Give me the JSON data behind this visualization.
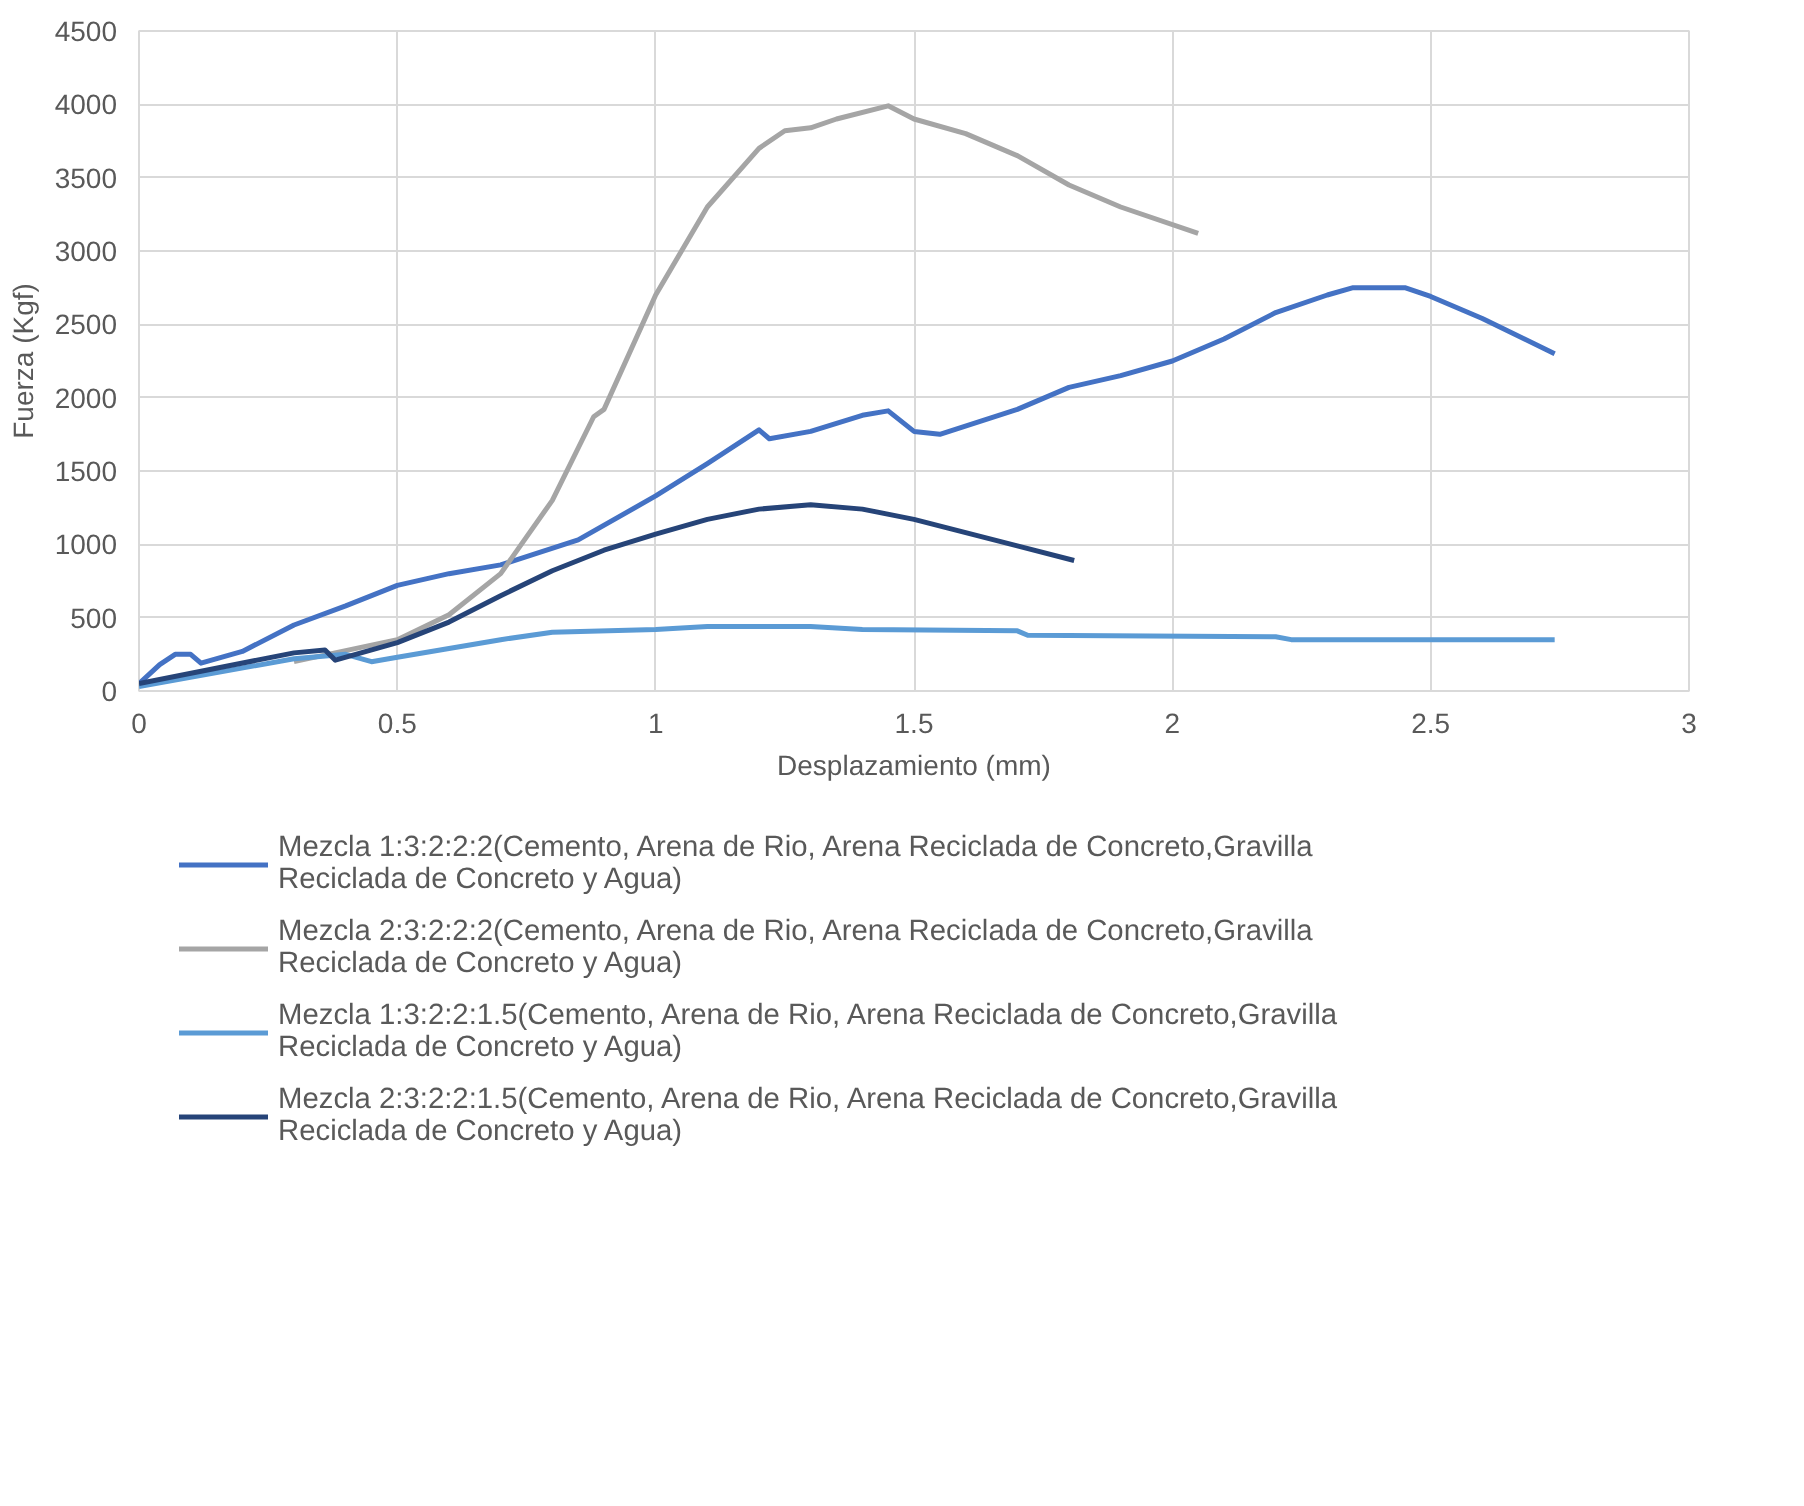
{
  "chart_data": {
    "type": "line",
    "xlabel": "Desplazamiento (mm)",
    "ylabel": "Fuerza (Kgf)",
    "xlim": [
      0,
      3
    ],
    "xticks": [
      0,
      0.5,
      1,
      1.5,
      2,
      2.5,
      3
    ],
    "ylim": [
      0,
      4500
    ],
    "yticks": [
      0,
      500,
      1000,
      1500,
      2000,
      2500,
      3000,
      3500,
      4000,
      4500
    ],
    "grid": true,
    "legend": "bottom",
    "series": [
      {
        "name": "Mezcla 1:3:2:2:2(Cemento, Arena de Rio, Arena Reciclada de Concreto,Gravilla Reciclada de Concreto y Agua)",
        "color": "#4472c4",
        "x": [
          0,
          0.04,
          0.07,
          0.1,
          0.12,
          0.2,
          0.3,
          0.4,
          0.5,
          0.6,
          0.7,
          0.85,
          1.0,
          1.1,
          1.2,
          1.22,
          1.3,
          1.4,
          1.45,
          1.5,
          1.55,
          1.7,
          1.8,
          1.9,
          2.0,
          2.1,
          2.2,
          2.3,
          2.35,
          2.45,
          2.5,
          2.6,
          2.74
        ],
        "values": [
          50,
          180,
          250,
          250,
          190,
          270,
          450,
          580,
          720,
          800,
          860,
          1030,
          1330,
          1550,
          1780,
          1720,
          1770,
          1880,
          1910,
          1770,
          1750,
          1920,
          2070,
          2150,
          2250,
          2400,
          2580,
          2700,
          2750,
          2750,
          2690,
          2540,
          2300
        ]
      },
      {
        "name": "Mezcla 2:3:2:2:2(Cemento, Arena de Rio, Arena Reciclada de Concreto,Gravilla Reciclada de Concreto y Agua)",
        "color": "#a5a5a5",
        "x": [
          0.3,
          0.5,
          0.6,
          0.7,
          0.8,
          0.88,
          0.9,
          1.0,
          1.1,
          1.2,
          1.25,
          1.3,
          1.35,
          1.45,
          1.5,
          1.6,
          1.7,
          1.8,
          1.9,
          2.05
        ],
        "values": [
          200,
          350,
          520,
          800,
          1300,
          1870,
          1920,
          2700,
          3300,
          3700,
          3820,
          3840,
          3900,
          3990,
          3900,
          3800,
          3650,
          3450,
          3300,
          3120
        ]
      },
      {
        "name": "Mezcla 1:3:2:2:1.5(Cemento, Arena de Rio, Arena Reciclada de Concreto,Gravilla Reciclada de Concreto y Agua)",
        "color": "#5b9bd5",
        "x": [
          0,
          0.3,
          0.4,
          0.45,
          0.5,
          0.7,
          0.8,
          1.0,
          1.1,
          1.3,
          1.4,
          1.7,
          1.72,
          2.2,
          2.23,
          2.74
        ],
        "values": [
          30,
          220,
          250,
          200,
          230,
          350,
          400,
          420,
          440,
          440,
          420,
          410,
          380,
          370,
          350,
          350
        ]
      },
      {
        "name": "Mezcla 2:3:2:2:1.5(Cemento, Arena de Rio, Arena Reciclada de Concreto,Gravilla Reciclada de Concreto y Agua)",
        "color": "#264478",
        "x": [
          0,
          0.3,
          0.36,
          0.38,
          0.5,
          0.6,
          0.7,
          0.8,
          0.9,
          1.0,
          1.1,
          1.2,
          1.3,
          1.4,
          1.5,
          1.6,
          1.7,
          1.81
        ],
        "values": [
          50,
          260,
          280,
          210,
          330,
          470,
          650,
          820,
          960,
          1070,
          1170,
          1240,
          1270,
          1240,
          1170,
          1080,
          990,
          890
        ]
      }
    ]
  }
}
